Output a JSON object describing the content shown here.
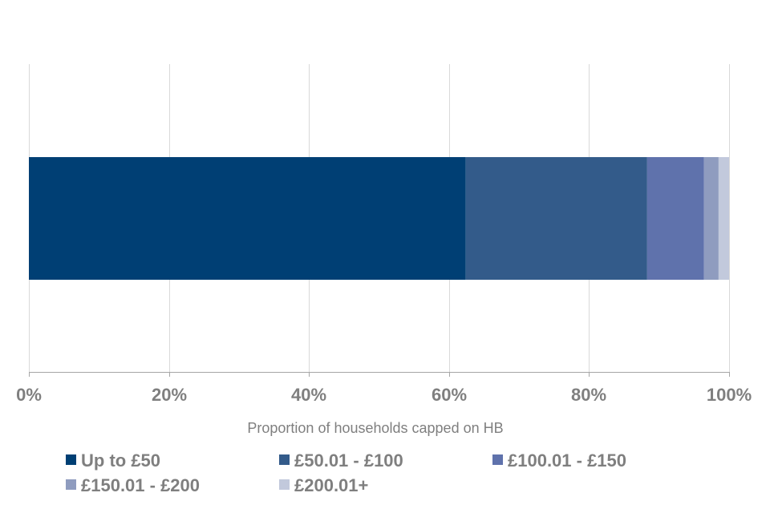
{
  "chart_data": {
    "type": "bar",
    "orientation": "horizontal",
    "stacked": true,
    "title": "",
    "xlabel": "Proportion of households capped on HB",
    "ylabel": "",
    "xlim": [
      0,
      100
    ],
    "x_ticks": [
      "0%",
      "20%",
      "40%",
      "60%",
      "80%",
      "100%"
    ],
    "grid": true,
    "legend_position": "bottom",
    "series": [
      {
        "name": "Up to £50",
        "value": 62.4,
        "color": "#003f74"
      },
      {
        "name": "£50.01 - £100",
        "value": 25.9,
        "color": "#335b8a"
      },
      {
        "name": "£100.01 - £150",
        "value": 8.1,
        "color": "#5f72ac"
      },
      {
        "name": "£150.01 - £200",
        "value": 2.1,
        "color": "#8f9cbf"
      },
      {
        "name": "£200.01+",
        "value": 1.5,
        "color": "#c2c9dc"
      }
    ]
  }
}
